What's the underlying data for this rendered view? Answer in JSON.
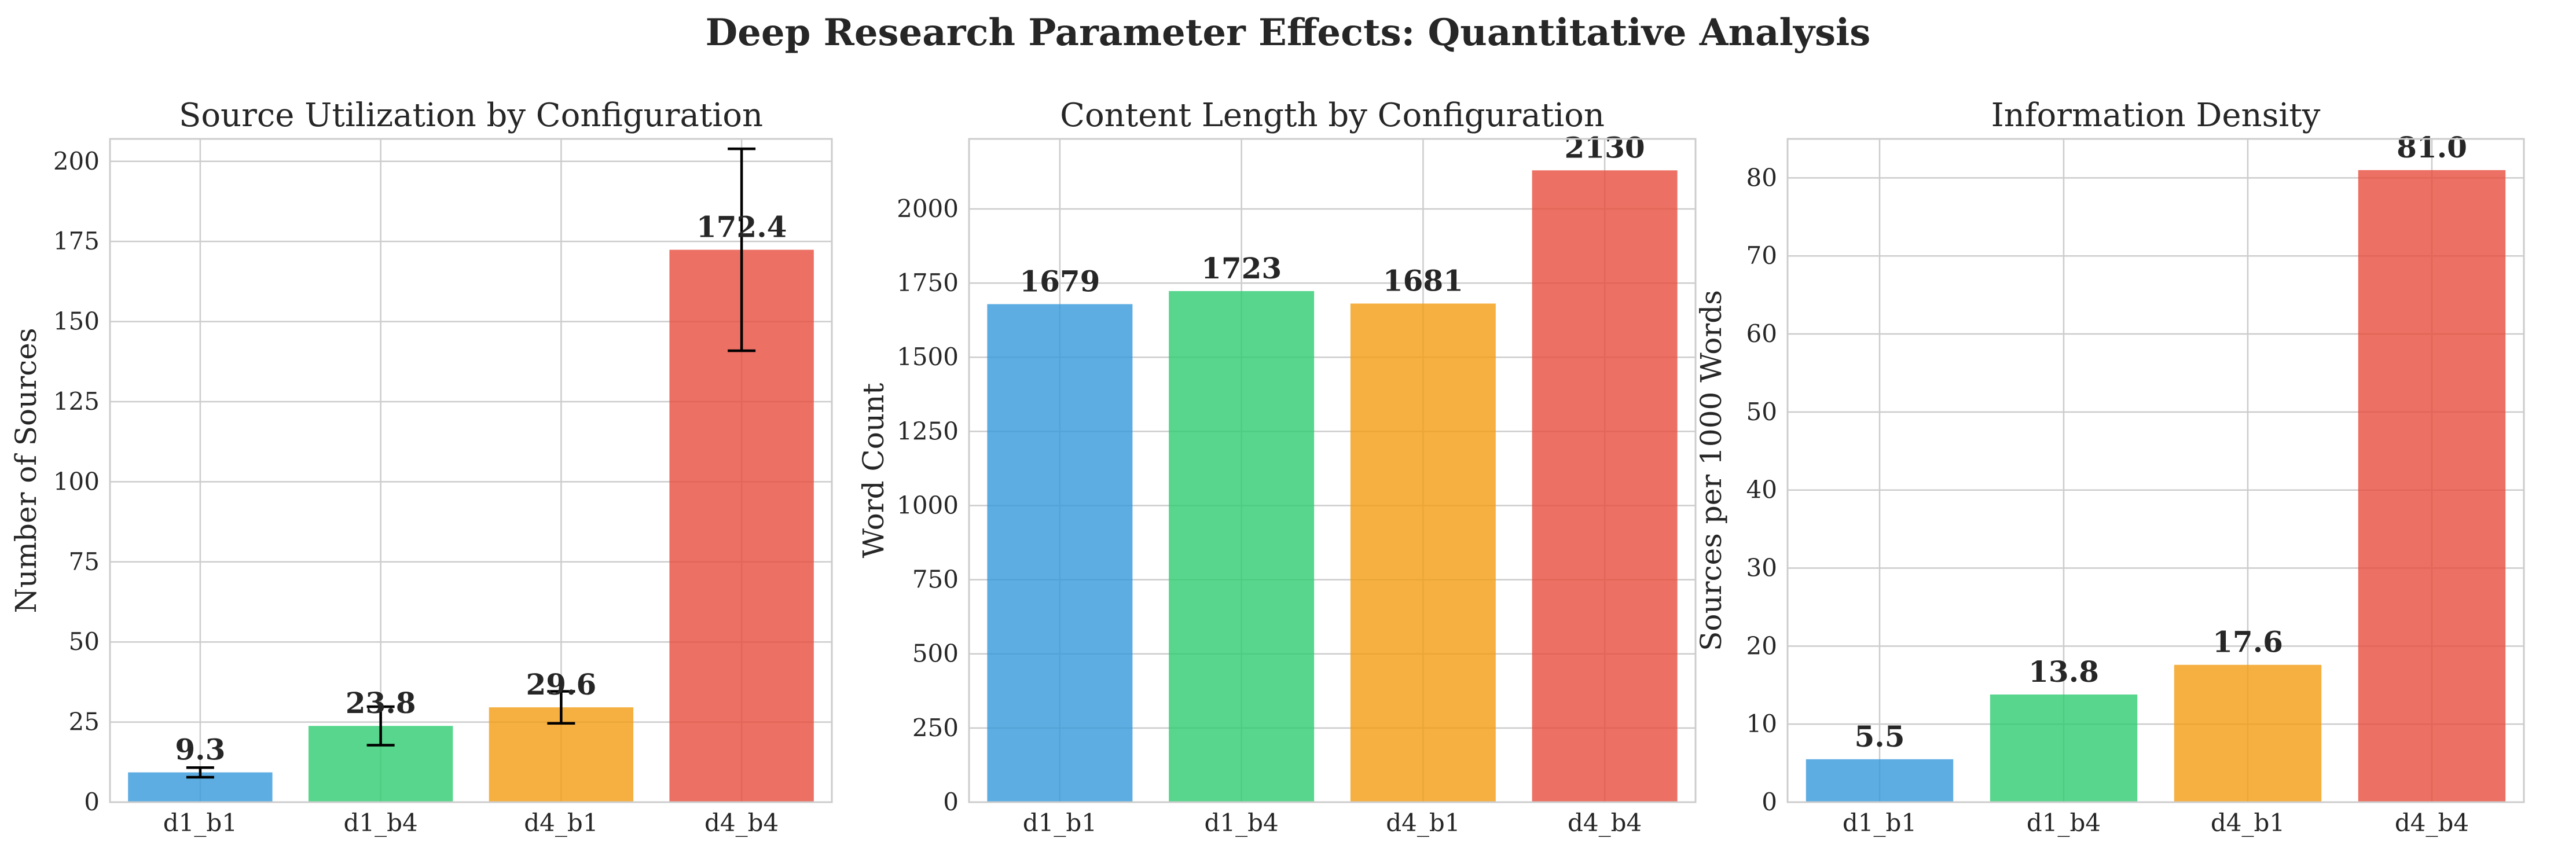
{
  "figure": {
    "title": "Deep Research Parameter Effects: Quantitative Analysis"
  },
  "colors": {
    "bars": [
      "#3498db",
      "#2ecc71",
      "#f39c12",
      "#e74c3c"
    ],
    "grid": "#cccccc",
    "spine": "#cccccc",
    "errorbar": "#000000",
    "text": "#262626"
  },
  "chart_data": [
    {
      "type": "bar",
      "title": "Source Utilization by Configuration",
      "xlabel": "",
      "ylabel": "Number of Sources",
      "categories": [
        "d1_b1",
        "d1_b4",
        "d4_b1",
        "d4_b4"
      ],
      "values": [
        9.3,
        23.8,
        29.6,
        172.4
      ],
      "value_labels": [
        "9.3",
        "23.8",
        "29.6",
        "172.4"
      ],
      "error": [
        1.5,
        6.0,
        5.0,
        31.5
      ],
      "ylim": [
        0,
        207
      ],
      "yticks": [
        0,
        25,
        50,
        75,
        100,
        125,
        150,
        175,
        200
      ],
      "ytick_labels": [
        "0",
        "25",
        "50",
        "75",
        "100",
        "125",
        "150",
        "175",
        "200"
      ],
      "grid": true,
      "legend": "none"
    },
    {
      "type": "bar",
      "title": "Content Length by Configuration",
      "xlabel": "",
      "ylabel": "Word Count",
      "categories": [
        "d1_b1",
        "d1_b4",
        "d4_b1",
        "d4_b4"
      ],
      "values": [
        1679,
        1723,
        1681,
        2130
      ],
      "value_labels": [
        "1679",
        "1723",
        "1681",
        "2130"
      ],
      "ylim": [
        0,
        2236
      ],
      "yticks": [
        0,
        250,
        500,
        750,
        1000,
        1250,
        1500,
        1750,
        2000
      ],
      "ytick_labels": [
        "0",
        "250",
        "500",
        "750",
        "1000",
        "1250",
        "1500",
        "1750",
        "2000"
      ],
      "grid": true,
      "legend": "none"
    },
    {
      "type": "bar",
      "title": "Information Density",
      "xlabel": "",
      "ylabel": "Sources per 1000 Words",
      "categories": [
        "d1_b1",
        "d1_b4",
        "d4_b1",
        "d4_b4"
      ],
      "values": [
        5.5,
        13.8,
        17.6,
        81.0
      ],
      "value_labels": [
        "5.5",
        "13.8",
        "17.6",
        "81.0"
      ],
      "ylim": [
        0,
        85
      ],
      "yticks": [
        0,
        10,
        20,
        30,
        40,
        50,
        60,
        70,
        80
      ],
      "ytick_labels": [
        "0",
        "10",
        "20",
        "30",
        "40",
        "50",
        "60",
        "70",
        "80"
      ],
      "grid": true,
      "legend": "none"
    }
  ]
}
